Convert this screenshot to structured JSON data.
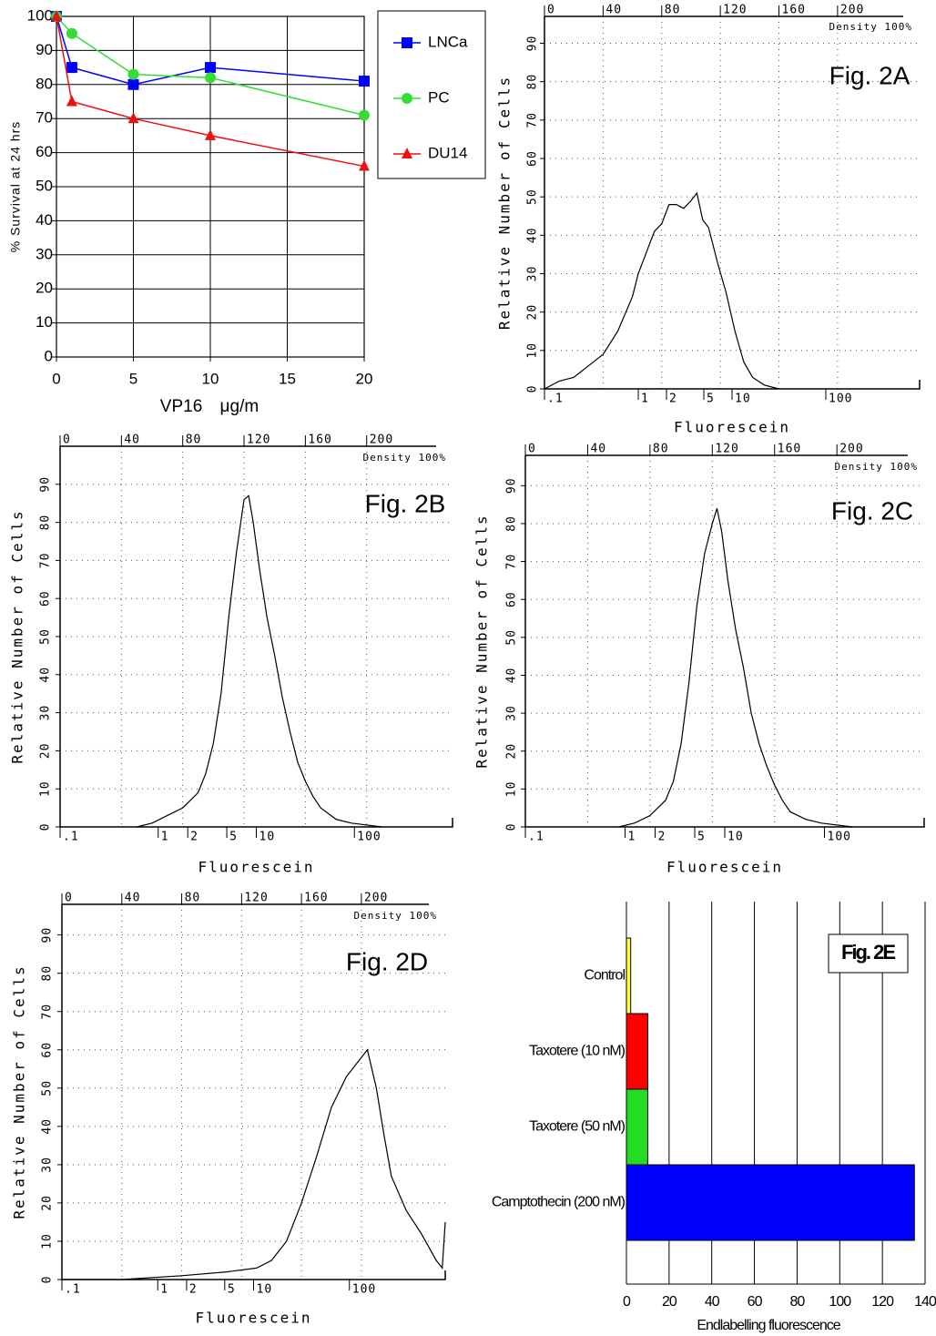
{
  "chart_data": [
    {
      "type": "line",
      "xlabel": "VP16 μg/m",
      "ylabel": "% Survival at 24 hrs",
      "x": [
        0,
        1,
        5,
        10,
        20
      ],
      "series": [
        {
          "name": "LNCa",
          "color": "#0000ff",
          "marker": "square",
          "values": [
            100,
            85,
            80,
            85,
            81
          ]
        },
        {
          "name": "PC",
          "color": "#33dd33",
          "marker": "circle",
          "values": [
            100,
            95,
            83,
            82,
            71
          ]
        },
        {
          "name": "DU14",
          "color": "#ee1111",
          "marker": "triangle",
          "values": [
            100,
            75,
            70,
            65,
            56
          ]
        }
      ],
      "xlim": [
        0,
        20
      ],
      "xticks": [
        0,
        5,
        10,
        15,
        20
      ],
      "ylim": [
        0,
        100
      ],
      "yticks": [
        0,
        10,
        20,
        30,
        40,
        50,
        60,
        70,
        80,
        90,
        100
      ],
      "grid": true,
      "grid_style": "solid",
      "legend": "right"
    },
    {
      "type": "line",
      "title": "Fig. 2A",
      "annotation": "Density 100%",
      "xlabel": "Fluorescein",
      "ylabel": "Relative Number of Cells",
      "x": [
        0,
        10,
        20,
        30,
        40,
        50,
        60,
        64,
        70,
        75,
        80,
        85,
        90,
        95,
        100,
        104,
        108,
        112,
        118,
        124,
        130,
        136,
        142,
        150,
        160
      ],
      "series": [
        {
          "color": "#000000",
          "values": [
            0,
            2,
            3,
            6,
            9,
            15,
            24,
            30,
            36,
            41,
            43,
            48,
            48,
            47,
            49,
            51,
            44,
            42,
            33,
            25,
            15,
            7,
            3,
            1,
            0
          ]
        }
      ],
      "xlim": [
        0,
        256
      ],
      "xticks": [
        0,
        40,
        80,
        120,
        160,
        200
      ],
      "xaxis_position": "top",
      "x2lim": [
        0.1,
        1000
      ],
      "x2scale": "log",
      "x2ticks": [
        {
          "value": 0.1,
          "label": ".1"
        },
        1,
        2,
        5,
        10,
        100
      ],
      "ylim": [
        0,
        97
      ],
      "yticks": [
        0,
        10,
        20,
        30,
        40,
        50,
        60,
        70,
        80,
        90
      ],
      "grid": true,
      "grid_style": "dotted"
    },
    {
      "type": "line",
      "title": "Fig. 2B",
      "annotation": "Density 100%",
      "xlabel": "Fluorescein",
      "ylabel": "Relative Number of Cells",
      "x": [
        50,
        60,
        70,
        80,
        90,
        95,
        100,
        105,
        110,
        115,
        120,
        123,
        126,
        130,
        135,
        140,
        145,
        150,
        155,
        160,
        165,
        170,
        180,
        190,
        210
      ],
      "series": [
        {
          "color": "#000000",
          "values": [
            0,
            1,
            3,
            5,
            9,
            14,
            22,
            35,
            55,
            72,
            86,
            87,
            80,
            68,
            55,
            45,
            34,
            25,
            17,
            12,
            8,
            5,
            2,
            1,
            0
          ]
        }
      ],
      "xlim": [
        0,
        256
      ],
      "xticks": [
        0,
        40,
        80,
        120,
        160,
        200
      ],
      "xaxis_position": "top",
      "x2lim": [
        0.1,
        1000
      ],
      "x2scale": "log",
      "x2ticks": [
        {
          "value": 0.1,
          "label": ".1"
        },
        1,
        2,
        5,
        10,
        100
      ],
      "ylim": [
        0,
        100
      ],
      "yticks": [
        0,
        10,
        20,
        30,
        40,
        50,
        60,
        70,
        80,
        90
      ],
      "grid": true,
      "grid_style": "dotted"
    },
    {
      "type": "line",
      "title": "Fig. 2C",
      "annotation": "Density 100%",
      "xlabel": "Fluorescein",
      "ylabel": "Relative Number of Cells",
      "x": [
        60,
        70,
        80,
        90,
        95,
        100,
        105,
        110,
        115,
        120,
        123,
        126,
        130,
        135,
        140,
        145,
        150,
        155,
        160,
        165,
        170,
        180,
        190,
        210
      ],
      "series": [
        {
          "color": "#000000",
          "values": [
            0,
            1,
            3,
            7,
            12,
            22,
            38,
            58,
            72,
            80,
            84,
            78,
            65,
            52,
            42,
            30,
            22,
            16,
            11,
            7,
            4,
            2,
            1,
            0
          ]
        }
      ],
      "xlim": [
        0,
        256
      ],
      "xticks": [
        0,
        40,
        80,
        120,
        160,
        200
      ],
      "xaxis_position": "top",
      "x2lim": [
        0.1,
        1000
      ],
      "x2scale": "log",
      "x2ticks": [
        {
          "value": 0.1,
          "label": ".1"
        },
        1,
        2,
        5,
        10,
        100
      ],
      "ylim": [
        0,
        98
      ],
      "yticks": [
        0,
        10,
        20,
        30,
        40,
        50,
        60,
        70,
        80,
        90
      ],
      "grid": true,
      "grid_style": "dotted"
    },
    {
      "type": "line",
      "title": "Fig. 2D",
      "annotation": "Density 100%",
      "xlabel": "Fluorescein",
      "ylabel": "Relative Number of Cells",
      "x": [
        0,
        40,
        80,
        110,
        130,
        140,
        150,
        160,
        170,
        180,
        190,
        200,
        204,
        210,
        215,
        220,
        230,
        240,
        250,
        254,
        256
      ],
      "series": [
        {
          "color": "#000000",
          "values": [
            0,
            0,
            1,
            2,
            3,
            5,
            10,
            20,
            32,
            45,
            53,
            58,
            60,
            50,
            38,
            27,
            18,
            12,
            5,
            3,
            15
          ]
        }
      ],
      "xlim": [
        0,
        256
      ],
      "xticks": [
        0,
        40,
        80,
        120,
        160,
        200
      ],
      "xaxis_position": "top",
      "x2lim": [
        0.1,
        1000
      ],
      "x2scale": "log",
      "x2ticks": [
        {
          "value": 0.1,
          "label": ".1"
        },
        1,
        2,
        5,
        10,
        100
      ],
      "ylim": [
        0,
        98
      ],
      "yticks": [
        0,
        10,
        20,
        30,
        40,
        50,
        60,
        70,
        80,
        90
      ],
      "grid": true,
      "grid_style": "dotted"
    },
    {
      "type": "bar",
      "orientation": "horizontal",
      "title": "Fig. 2E",
      "xlabel": "Endlabelling fluorescence",
      "categories": [
        "Control",
        "Taxotere (10 nM)",
        "Taxotere (50 nM)",
        "Camptothecin (200 nM)"
      ],
      "values": [
        2,
        10,
        10,
        135
      ],
      "colors": [
        "#ffff33",
        "#ff0000",
        "#22dd22",
        "#0000ff"
      ],
      "xlim": [
        0,
        140
      ],
      "xticks": [
        0,
        20,
        40,
        60,
        80,
        100,
        120,
        140
      ],
      "grid": true
    }
  ]
}
